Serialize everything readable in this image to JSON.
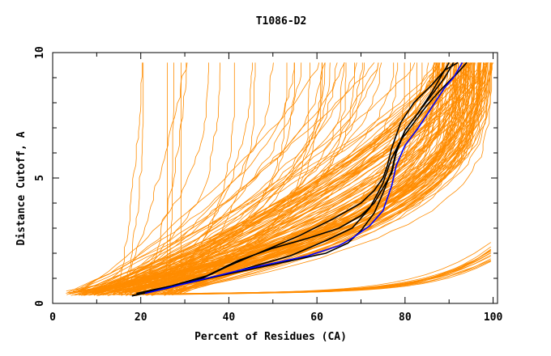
{
  "chart_data": {
    "type": "line",
    "title": "T1086-D2",
    "xlabel": "Percent of Residues (CA)",
    "ylabel": "Distance Cutoff, A",
    "xlim": [
      0,
      101
    ],
    "ylim": [
      0,
      10
    ],
    "x_ticks": [
      0,
      20,
      40,
      60,
      80,
      100
    ],
    "y_ticks": [
      0,
      5,
      10
    ],
    "grid": false,
    "legend": "none",
    "colors": {
      "background_series": "#ff8c00",
      "highlight": "#0000ff",
      "reference": "#000000"
    },
    "series": [
      {
        "role": "highlight",
        "color": "#0000ff",
        "x": [
          21,
          28,
          35,
          42,
          50,
          58,
          65,
          68,
          72,
          75,
          77,
          78,
          80,
          83,
          86,
          89,
          91,
          93
        ],
        "y": [
          0.4,
          0.7,
          1.0,
          1.3,
          1.6,
          1.9,
          2.3,
          2.6,
          3.1,
          3.7,
          4.7,
          5.5,
          6.3,
          7.0,
          7.8,
          8.6,
          9.0,
          9.6
        ]
      },
      {
        "role": "reference",
        "color": "#000000",
        "x": [
          18,
          25,
          33,
          40,
          46,
          54,
          62,
          68,
          72,
          75,
          77,
          79,
          82,
          85,
          88,
          92,
          94
        ],
        "y": [
          0.3,
          0.6,
          0.9,
          1.2,
          1.5,
          1.9,
          2.5,
          3.0,
          3.8,
          4.8,
          5.8,
          6.5,
          7.2,
          7.9,
          8.5,
          9.2,
          9.6
        ]
      },
      {
        "role": "reference",
        "color": "#000000",
        "x": [
          18,
          26,
          34,
          40,
          48,
          56,
          64,
          70,
          73,
          75,
          76,
          77,
          79,
          82,
          86,
          89,
          92
        ],
        "y": [
          0.3,
          0.6,
          1.0,
          1.5,
          2.1,
          2.7,
          3.4,
          4.0,
          4.5,
          5.0,
          5.5,
          6.2,
          7.2,
          8.0,
          8.7,
          9.3,
          9.6
        ]
      },
      {
        "role": "reference",
        "color": "#000000",
        "x": [
          19,
          27,
          35,
          42,
          50,
          58,
          65,
          70,
          73,
          75,
          77,
          78,
          80,
          83,
          86,
          88,
          90
        ],
        "y": [
          0.4,
          0.7,
          1.1,
          1.7,
          2.2,
          2.6,
          3.0,
          3.5,
          4.0,
          4.6,
          5.2,
          6.0,
          6.9,
          7.6,
          8.4,
          9.0,
          9.6
        ]
      },
      {
        "role": "reference",
        "color": "#000000",
        "x": [
          22,
          30,
          38,
          46,
          54,
          62,
          67,
          70,
          73,
          75,
          77,
          78,
          80,
          83,
          86,
          89,
          91
        ],
        "y": [
          0.5,
          0.8,
          1.1,
          1.4,
          1.7,
          2.0,
          2.4,
          2.9,
          3.6,
          4.4,
          5.3,
          6.1,
          6.9,
          7.6,
          8.3,
          9.0,
          9.6
        ]
      }
    ]
  }
}
